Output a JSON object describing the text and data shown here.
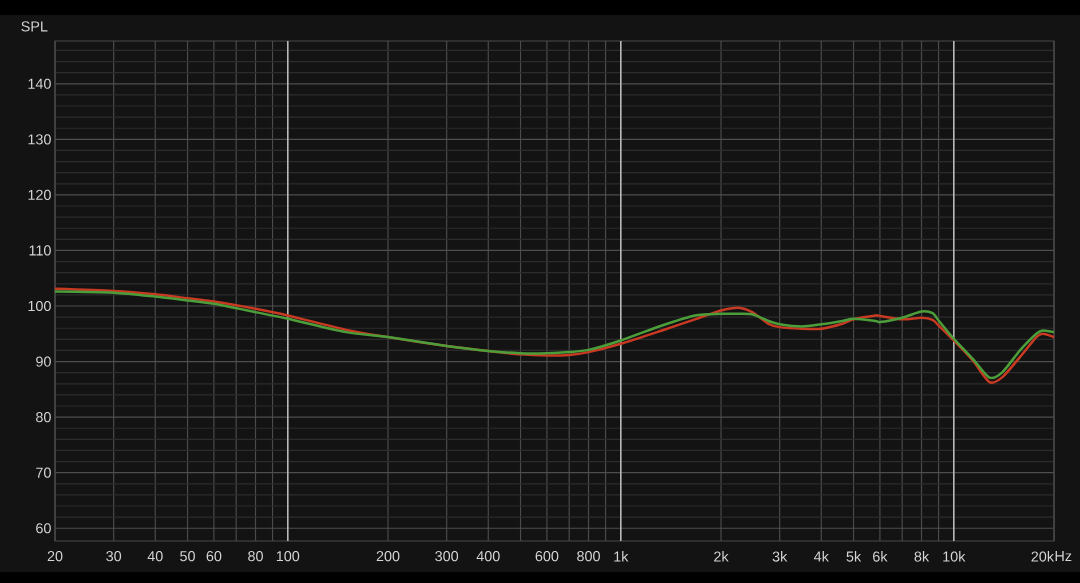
{
  "chart_data": {
    "type": "line",
    "ylabel": "SPL",
    "xlabel": "Hz",
    "log": "x",
    "grid": true,
    "xlim": [
      20,
      20000
    ],
    "ylim": [
      57.7,
      147.7
    ],
    "xticks": [
      20,
      30,
      40,
      50,
      60,
      {
        "value": 70,
        "label": null
      },
      80,
      {
        "value": 90,
        "label": null
      },
      100,
      200,
      300,
      400,
      {
        "value": 500,
        "label": null
      },
      600,
      {
        "value": 700,
        "label": null
      },
      800,
      {
        "value": 900,
        "label": null
      },
      {
        "value": 1000,
        "label": "1k"
      },
      {
        "value": 2000,
        "label": "2k"
      },
      {
        "value": 3000,
        "label": "3k"
      },
      {
        "value": 4000,
        "label": "4k"
      },
      {
        "value": 5000,
        "label": "5k"
      },
      {
        "value": 6000,
        "label": "6k"
      },
      {
        "value": 7000,
        "label": null
      },
      {
        "value": 8000,
        "label": "8k"
      },
      {
        "value": 9000,
        "label": null
      },
      {
        "value": 10000,
        "label": "10k"
      },
      {
        "value": 20000,
        "label": "20k"
      }
    ],
    "yticks": [
      60,
      {
        "value": 62,
        "label": null
      },
      {
        "value": 64,
        "label": null
      },
      {
        "value": 66,
        "label": null
      },
      {
        "value": 68,
        "label": null
      },
      70,
      {
        "value": 72,
        "label": null
      },
      {
        "value": 74,
        "label": null
      },
      {
        "value": 76,
        "label": null
      },
      {
        "value": 78,
        "label": null
      },
      80,
      {
        "value": 82,
        "label": null
      },
      {
        "value": 84,
        "label": null
      },
      {
        "value": 86,
        "label": null
      },
      {
        "value": 88,
        "label": null
      },
      90,
      {
        "value": 92,
        "label": null
      },
      {
        "value": 94,
        "label": null
      },
      {
        "value": 96,
        "label": null
      },
      {
        "value": 98,
        "label": null
      },
      100,
      {
        "value": 102,
        "label": null
      },
      {
        "value": 104,
        "label": null
      },
      {
        "value": 106,
        "label": null
      },
      {
        "value": 108,
        "label": null
      },
      110,
      {
        "value": 112,
        "label": null
      },
      {
        "value": 114,
        "label": null
      },
      {
        "value": 116,
        "label": null
      },
      {
        "value": 118,
        "label": null
      },
      120,
      {
        "value": 122,
        "label": null
      },
      {
        "value": 124,
        "label": null
      },
      {
        "value": 126,
        "label": null
      },
      {
        "value": 128,
        "label": null
      },
      130,
      {
        "value": 132,
        "label": null
      },
      {
        "value": 134,
        "label": null
      },
      {
        "value": 136,
        "label": null
      },
      {
        "value": 138,
        "label": null
      },
      140,
      {
        "value": 142,
        "label": null
      },
      {
        "value": 144,
        "label": null
      },
      {
        "value": 146,
        "label": null
      }
    ],
    "x": [
      20,
      30,
      40,
      50,
      60,
      80,
      100,
      150,
      200,
      300,
      400,
      500,
      600,
      700,
      800,
      1000,
      1330,
      1670,
      2000,
      2260,
      2480,
      2780,
      3000,
      3500,
      4000,
      4630,
      5000,
      5830,
      6000,
      7000,
      8000,
      8640,
      9000,
      10000,
      11400,
      12800,
      14000,
      15800,
      17700,
      18500,
      20000
    ],
    "series": [
      {
        "color": "#c83a22",
        "values": [
          103.1,
          102.7,
          102.1,
          101.4,
          100.8,
          99.5,
          98.3,
          95.7,
          94.4,
          92.8,
          91.9,
          91.3,
          91.1,
          91.2,
          91.7,
          93.2,
          95.6,
          97.6,
          99.2,
          99.7,
          98.9,
          96.8,
          96.2,
          95.9,
          95.9,
          96.8,
          97.6,
          98.3,
          98.2,
          97.6,
          97.9,
          97.5,
          96.5,
          93.8,
          90.2,
          86.3,
          87.2,
          90.8,
          94.4,
          95.0,
          94.4
        ]
      },
      {
        "color": "#4c9e3a",
        "values": [
          102.6,
          102.4,
          101.7,
          101.0,
          100.4,
          98.9,
          97.7,
          95.3,
          94.4,
          92.8,
          91.9,
          91.5,
          91.5,
          91.7,
          92.1,
          93.8,
          96.5,
          98.3,
          98.6,
          98.6,
          98.5,
          97.3,
          96.7,
          96.3,
          96.7,
          97.3,
          97.7,
          97.3,
          97.1,
          97.9,
          99.0,
          98.7,
          97.4,
          94.1,
          90.5,
          87.1,
          88.1,
          92.0,
          95.0,
          95.6,
          95.3
        ]
      }
    ]
  }
}
